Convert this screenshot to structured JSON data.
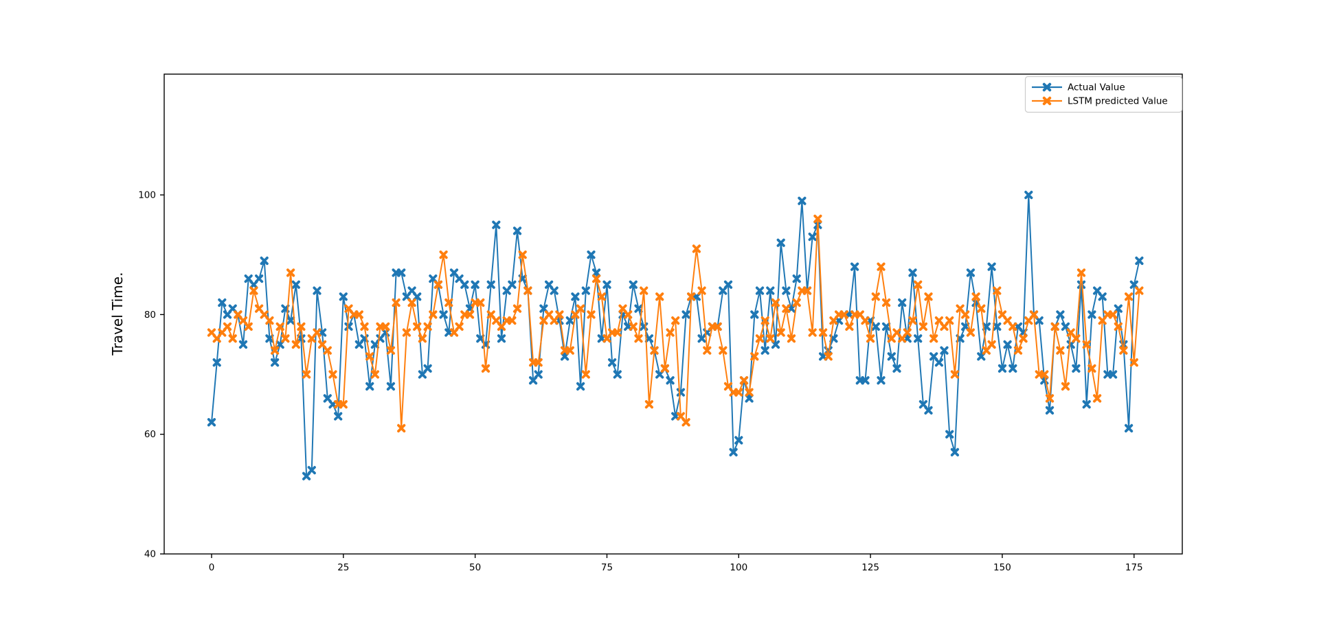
{
  "figure": {
    "background": "#ffffff",
    "ylabel": "Travel Time.",
    "legend": {
      "entries": [
        {
          "label": "Actual Value",
          "color": "#1f77b4"
        },
        {
          "label": "LSTM predicted Value",
          "color": "#ff7f0e"
        }
      ]
    }
  },
  "chart_data": {
    "type": "line",
    "title": "",
    "xlabel": "",
    "ylabel": "Travel Time.",
    "x_start": 0,
    "x_step": 1,
    "xlim": [
      -9,
      185
    ],
    "ylim": [
      40,
      120.2
    ],
    "x_ticks": [
      0,
      25,
      50,
      75,
      100,
      125,
      150,
      175
    ],
    "y_ticks": [
      40,
      60,
      80,
      100
    ],
    "grid": false,
    "legend_position": "upper right",
    "marker": "X",
    "series": [
      {
        "name": "Actual Value",
        "color": "#1f77b4",
        "values": [
          62,
          72,
          82,
          80,
          81,
          80,
          75,
          86,
          85,
          86,
          89,
          76,
          72,
          75,
          81,
          79,
          85,
          76,
          53,
          54,
          84,
          77,
          66,
          65,
          63,
          83,
          78,
          80,
          75,
          76,
          68,
          75,
          76,
          77,
          68,
          87,
          87,
          83,
          84,
          83,
          70,
          71,
          86,
          85,
          80,
          77,
          87,
          86,
          85,
          81,
          85,
          76,
          75,
          85,
          95,
          76,
          84,
          85,
          94,
          86,
          84,
          69,
          70,
          81,
          85,
          84,
          79,
          73,
          79,
          83,
          68,
          84,
          90,
          87,
          76,
          85,
          72,
          70,
          80,
          78,
          85,
          81,
          78,
          76,
          74,
          70,
          71,
          69,
          63,
          67,
          80,
          83,
          83,
          76,
          77,
          78,
          78,
          84,
          85,
          57,
          59,
          69,
          66,
          80,
          84,
          74,
          84,
          75,
          92,
          84,
          81,
          86,
          99,
          84,
          93,
          95,
          73,
          74,
          76,
          79,
          80,
          80,
          88,
          69,
          69,
          79,
          78,
          69,
          78,
          73,
          71,
          82,
          76,
          87,
          76,
          65,
          64,
          73,
          72,
          74,
          60,
          57,
          76,
          78,
          87,
          82,
          73,
          78,
          88,
          78,
          71,
          75,
          71,
          78,
          77,
          100,
          80,
          79,
          69,
          64,
          78,
          80,
          78,
          75,
          71,
          85,
          65,
          80,
          84,
          83,
          70,
          70,
          81,
          75,
          61,
          85,
          89
        ]
      },
      {
        "name": "LSTM predicted Value",
        "color": "#ff7f0e",
        "values": [
          77,
          76,
          77,
          78,
          76,
          80,
          79,
          78,
          84,
          81,
          80,
          79,
          74,
          78,
          76,
          87,
          75,
          78,
          70,
          76,
          77,
          75,
          74,
          70,
          65,
          65,
          81,
          80,
          80,
          78,
          73,
          70,
          78,
          78,
          74,
          82,
          61,
          77,
          82,
          78,
          76,
          78,
          80,
          85,
          90,
          82,
          77,
          78,
          80,
          80,
          82,
          82,
          71,
          80,
          79,
          78,
          79,
          79,
          81,
          90,
          84,
          72,
          72,
          79,
          80,
          79,
          80,
          74,
          74,
          80,
          81,
          70,
          80,
          86,
          83,
          76,
          77,
          77,
          81,
          80,
          78,
          76,
          84,
          65,
          74,
          83,
          71,
          77,
          79,
          63,
          62,
          83,
          91,
          84,
          74,
          78,
          78,
          74,
          68,
          67,
          67,
          69,
          67,
          73,
          76,
          79,
          76,
          82,
          77,
          81,
          76,
          82,
          84,
          84,
          77,
          96,
          77,
          73,
          79,
          80,
          80,
          78,
          80,
          80,
          79,
          76,
          83,
          88,
          82,
          76,
          77,
          76,
          77,
          79,
          85,
          78,
          83,
          76,
          79,
          78,
          79,
          70,
          81,
          80,
          77,
          83,
          81,
          74,
          75,
          84,
          80,
          79,
          78,
          74,
          76,
          79,
          80,
          70,
          70,
          66,
          78,
          74,
          68,
          77,
          76,
          87,
          75,
          71,
          66,
          79,
          80,
          80,
          78,
          74,
          83,
          72,
          84
        ]
      }
    ]
  }
}
